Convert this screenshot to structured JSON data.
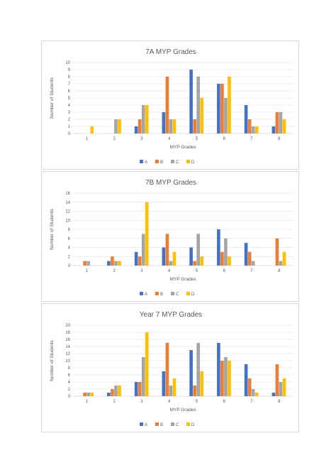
{
  "chart_data": [
    {
      "type": "bar",
      "title": "7A MYP Grades",
      "xlabel": "MYP Grades",
      "ylabel": "Number of Students",
      "categories": [
        "1",
        "2",
        "3",
        "4",
        "5",
        "6",
        "7",
        "8"
      ],
      "ylim": [
        0,
        10
      ],
      "yticks": [
        0,
        1,
        2,
        3,
        4,
        5,
        6,
        7,
        8,
        9,
        10
      ],
      "grid": true,
      "legend": "bottom",
      "series": [
        {
          "name": "A",
          "color": "#4472C4",
          "values": [
            0,
            0,
            1,
            3,
            9,
            7,
            4,
            1
          ]
        },
        {
          "name": "B",
          "color": "#ED7D31",
          "values": [
            0,
            0,
            2,
            8,
            2,
            7,
            2,
            3
          ]
        },
        {
          "name": "C",
          "color": "#A5A5A5",
          "values": [
            0,
            2,
            4,
            2,
            8,
            5,
            1,
            3
          ]
        },
        {
          "name": "D",
          "color": "#FFC000",
          "values": [
            1,
            2,
            4,
            2,
            5,
            8,
            1,
            2
          ]
        }
      ]
    },
    {
      "type": "bar",
      "title": "7B MYP Grades",
      "xlabel": "MYP Grades",
      "ylabel": "Number of Students",
      "categories": [
        "1",
        "2",
        "3",
        "4",
        "5",
        "6",
        "7",
        "8"
      ],
      "ylim": [
        0,
        16
      ],
      "yticks": [
        0,
        2,
        4,
        6,
        8,
        10,
        12,
        14,
        16
      ],
      "grid": true,
      "legend": "bottom",
      "series": [
        {
          "name": "A",
          "color": "#4472C4",
          "values": [
            0,
            1,
            3,
            4,
            4,
            8,
            5,
            0
          ]
        },
        {
          "name": "B",
          "color": "#ED7D31",
          "values": [
            1,
            2,
            2,
            7,
            1,
            3,
            3,
            6
          ]
        },
        {
          "name": "C",
          "color": "#A5A5A5",
          "values": [
            1,
            1,
            7,
            1,
            7,
            6,
            1,
            1
          ]
        },
        {
          "name": "D",
          "color": "#FFC000",
          "values": [
            0,
            1,
            14,
            3,
            2,
            2,
            0,
            3
          ]
        }
      ]
    },
    {
      "type": "bar",
      "title": "Year 7 MYP Grades",
      "xlabel": "MYP Grades",
      "ylabel": "Number of Students",
      "categories": [
        "1",
        "2",
        "3",
        "4",
        "5",
        "6",
        "7",
        "8"
      ],
      "ylim": [
        0,
        20
      ],
      "yticks": [
        0,
        2,
        4,
        6,
        8,
        10,
        12,
        14,
        16,
        18,
        20
      ],
      "grid": true,
      "legend": "bottom",
      "series": [
        {
          "name": "A",
          "color": "#4472C4",
          "values": [
            0,
            1,
            4,
            7,
            13,
            15,
            9,
            1
          ]
        },
        {
          "name": "B",
          "color": "#ED7D31",
          "values": [
            1,
            2,
            4,
            15,
            3,
            10,
            5,
            9
          ]
        },
        {
          "name": "C",
          "color": "#A5A5A5",
          "values": [
            1,
            3,
            11,
            3,
            15,
            11,
            2,
            4
          ]
        },
        {
          "name": "D",
          "color": "#FFC000",
          "values": [
            1,
            3,
            18,
            5,
            7,
            10,
            1,
            5
          ]
        }
      ]
    }
  ]
}
